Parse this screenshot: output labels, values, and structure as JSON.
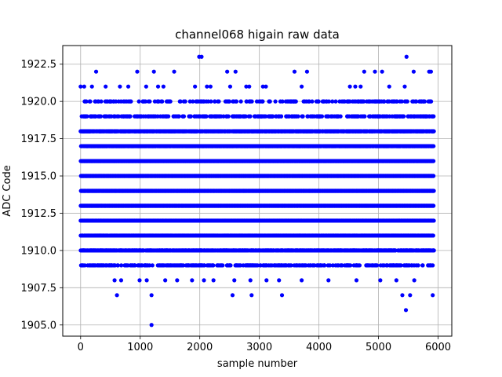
{
  "chart_data": {
    "type": "scatter",
    "title": "channel068 higain raw data",
    "xlabel": "sample number",
    "ylabel": "ADC Code",
    "xlim": [
      -300,
      6230
    ],
    "ylim": [
      1904.25,
      1923.75
    ],
    "xticks": [
      0,
      1000,
      2000,
      3000,
      4000,
      5000,
      6000
    ],
    "xtick_labels": [
      "0",
      "1000",
      "2000",
      "3000",
      "4000",
      "5000",
      "6000"
    ],
    "yticks": [
      1905.0,
      1907.5,
      1910.0,
      1912.5,
      1915.0,
      1917.5,
      1920.0,
      1922.5
    ],
    "ytick_labels": [
      "1905.0",
      "1907.5",
      "1910.0",
      "1912.5",
      "1915.0",
      "1917.5",
      "1920.0",
      "1922.5"
    ],
    "grid": true,
    "marker_color": "#0000ff",
    "x_range": [
      0,
      5930
    ],
    "levels": [
      {
        "y": 1912,
        "density": 1.0
      },
      {
        "y": 1913,
        "density": 1.0
      },
      {
        "y": 1914,
        "density": 1.0
      },
      {
        "y": 1915,
        "density": 1.0
      },
      {
        "y": 1916,
        "density": 1.0
      },
      {
        "y": 1917,
        "density": 0.9
      },
      {
        "y": 1911,
        "density": 0.9
      },
      {
        "y": 1918,
        "density": 0.65
      },
      {
        "y": 1910,
        "density": 0.6
      },
      {
        "y": 1919,
        "density": 0.3
      },
      {
        "y": 1909,
        "density": 0.3
      },
      {
        "y": 1920,
        "density": 0.18
      }
    ],
    "sparse_points": [
      {
        "x": 0,
        "y": 1921
      },
      {
        "x": 60,
        "y": 1921
      },
      {
        "x": 190,
        "y": 1921
      },
      {
        "x": 260,
        "y": 1922
      },
      {
        "x": 420,
        "y": 1921
      },
      {
        "x": 660,
        "y": 1921
      },
      {
        "x": 800,
        "y": 1921
      },
      {
        "x": 950,
        "y": 1922
      },
      {
        "x": 1100,
        "y": 1921
      },
      {
        "x": 1230,
        "y": 1922
      },
      {
        "x": 1300,
        "y": 1921
      },
      {
        "x": 1390,
        "y": 1921
      },
      {
        "x": 1570,
        "y": 1922
      },
      {
        "x": 1920,
        "y": 1921
      },
      {
        "x": 1990,
        "y": 1923
      },
      {
        "x": 2030,
        "y": 1923
      },
      {
        "x": 2120,
        "y": 1921
      },
      {
        "x": 2180,
        "y": 1921
      },
      {
        "x": 2460,
        "y": 1922
      },
      {
        "x": 2510,
        "y": 1921
      },
      {
        "x": 2600,
        "y": 1922
      },
      {
        "x": 2780,
        "y": 1921
      },
      {
        "x": 2830,
        "y": 1921
      },
      {
        "x": 3060,
        "y": 1921
      },
      {
        "x": 3110,
        "y": 1921
      },
      {
        "x": 3590,
        "y": 1922
      },
      {
        "x": 3710,
        "y": 1921
      },
      {
        "x": 3800,
        "y": 1922
      },
      {
        "x": 4520,
        "y": 1921
      },
      {
        "x": 4610,
        "y": 1921
      },
      {
        "x": 4700,
        "y": 1921
      },
      {
        "x": 4760,
        "y": 1922
      },
      {
        "x": 4940,
        "y": 1922
      },
      {
        "x": 5060,
        "y": 1922
      },
      {
        "x": 5180,
        "y": 1921
      },
      {
        "x": 5440,
        "y": 1921
      },
      {
        "x": 5470,
        "y": 1923
      },
      {
        "x": 5590,
        "y": 1922
      },
      {
        "x": 5850,
        "y": 1922
      },
      {
        "x": 5880,
        "y": 1922
      },
      {
        "x": 570,
        "y": 1908
      },
      {
        "x": 680,
        "y": 1908
      },
      {
        "x": 990,
        "y": 1908
      },
      {
        "x": 1110,
        "y": 1908
      },
      {
        "x": 1420,
        "y": 1908
      },
      {
        "x": 1620,
        "y": 1908
      },
      {
        "x": 1870,
        "y": 1908
      },
      {
        "x": 2070,
        "y": 1908
      },
      {
        "x": 2230,
        "y": 1908
      },
      {
        "x": 2580,
        "y": 1908
      },
      {
        "x": 2850,
        "y": 1908
      },
      {
        "x": 3120,
        "y": 1908
      },
      {
        "x": 3330,
        "y": 1908
      },
      {
        "x": 3710,
        "y": 1908
      },
      {
        "x": 4160,
        "y": 1908
      },
      {
        "x": 4630,
        "y": 1908
      },
      {
        "x": 5030,
        "y": 1908
      },
      {
        "x": 5300,
        "y": 1908
      },
      {
        "x": 5600,
        "y": 1908
      },
      {
        "x": 610,
        "y": 1907
      },
      {
        "x": 1190,
        "y": 1907
      },
      {
        "x": 2550,
        "y": 1907
      },
      {
        "x": 2870,
        "y": 1907
      },
      {
        "x": 3380,
        "y": 1907
      },
      {
        "x": 5400,
        "y": 1907
      },
      {
        "x": 5530,
        "y": 1907
      },
      {
        "x": 5910,
        "y": 1907
      },
      {
        "x": 5460,
        "y": 1906
      },
      {
        "x": 1190,
        "y": 1905
      }
    ]
  }
}
